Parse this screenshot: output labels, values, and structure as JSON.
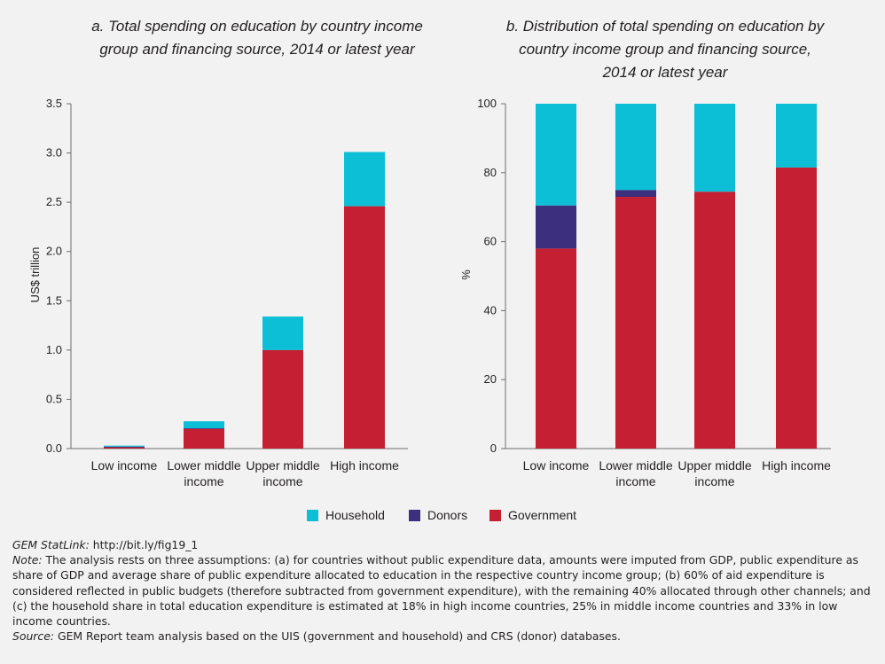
{
  "colors": {
    "household": "#0cbfd6",
    "donors": "#3b2f7e",
    "government": "#c41f33",
    "axis": "#6d6e71",
    "background": "#f2f2f2"
  },
  "chart_data": [
    {
      "type": "bar",
      "stacked": true,
      "title": "a. Total spending on education by country income group and financing source, 2014 or latest year",
      "title_lines": [
        "a. Total spending on education by country income",
        "group and financing source, 2014 or latest year"
      ],
      "ylabel": "US$ trillion",
      "ylim": [
        0,
        3.5
      ],
      "yticks": [
        "0.0",
        "0.5",
        "1.0",
        "1.5",
        "2.0",
        "2.5",
        "3.0",
        "3.5"
      ],
      "categories": [
        [
          "Low income"
        ],
        [
          "Lower middle",
          "income"
        ],
        [
          "Upper middle",
          "income"
        ],
        [
          "High income"
        ]
      ],
      "series": [
        {
          "name": "Government",
          "values": [
            0.015,
            0.2,
            1.0,
            2.46
          ]
        },
        {
          "name": "Donors",
          "values": [
            0.005,
            0.007,
            0.0,
            0.0
          ]
        },
        {
          "name": "Household",
          "values": [
            0.01,
            0.07,
            0.34,
            0.55
          ]
        }
      ],
      "grid": false
    },
    {
      "type": "bar",
      "stacked": true,
      "title": "b. Distribution of total spending on education by country income group and financing source, 2014 or latest year",
      "title_lines": [
        "b. Distribution of total spending on education by",
        "country income group and financing source,",
        "2014 or latest year"
      ],
      "ylabel": "%",
      "ylim": [
        0,
        100
      ],
      "yticks": [
        "0",
        "20",
        "40",
        "60",
        "80",
        "100"
      ],
      "categories": [
        [
          "Low income"
        ],
        [
          "Lower middle",
          "income"
        ],
        [
          "Upper middle",
          "income"
        ],
        [
          "High income"
        ]
      ],
      "series": [
        {
          "name": "Government",
          "values": [
            58,
            73,
            74.5,
            81.5
          ]
        },
        {
          "name": "Donors",
          "values": [
            12.5,
            2,
            0,
            0
          ]
        },
        {
          "name": "Household",
          "values": [
            29.5,
            25,
            25.5,
            18.5
          ]
        }
      ],
      "grid": false
    }
  ],
  "legend": [
    {
      "label": "Household",
      "color_key": "household"
    },
    {
      "label": "Donors",
      "color_key": "donors"
    },
    {
      "label": "Government",
      "color_key": "government"
    }
  ],
  "notes": {
    "statlink_label": "GEM StatLink:",
    "statlink_url": "http://bit.ly/fig19_1",
    "note_label": "Note:",
    "note_text": "The analysis rests on three assumptions: (a) for countries without public expenditure data, amounts were imputed from GDP, public expenditure as share of GDP and average share of public expenditure allocated to education in the respective country income group; (b) 60% of aid expenditure is considered reflected in public budgets (therefore subtracted from government expenditure), with the remaining 40% allocated through other channels; and (c) the household share in total education expenditure is estimated at 18% in high income countries, 25% in middle income countries and 33% in low income countries.",
    "source_label": "Source:",
    "source_text": "GEM Report team analysis based on the UIS (government and household) and CRS (donor) databases."
  }
}
